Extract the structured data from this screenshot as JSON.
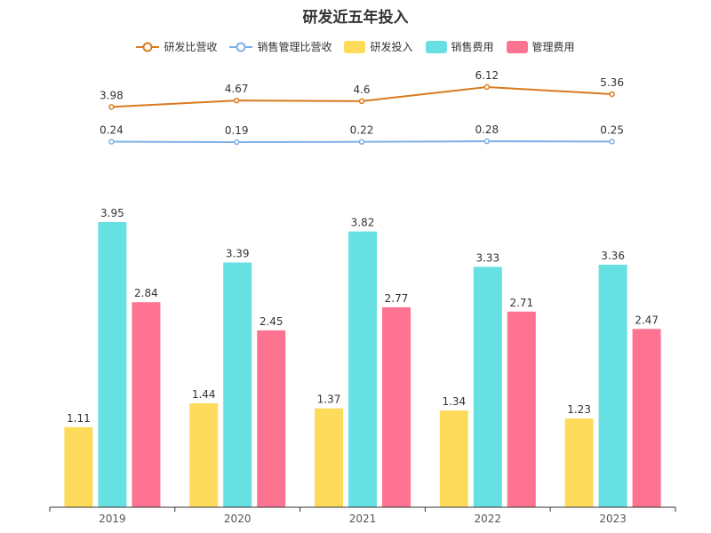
{
  "title": "研发近五年投入",
  "chart_data": {
    "type": "bar+line",
    "categories": [
      "2019",
      "2020",
      "2021",
      "2022",
      "2023"
    ],
    "bar_series": [
      {
        "name": "研发投入",
        "color": "#FFDB5C",
        "values": [
          1.11,
          1.44,
          1.37,
          1.34,
          1.23
        ]
      },
      {
        "name": "销售费用",
        "color": "#67E0E3",
        "values": [
          3.95,
          3.39,
          3.82,
          3.33,
          3.36
        ]
      },
      {
        "name": "管理费用",
        "color": "#FF7392",
        "values": [
          2.84,
          2.45,
          2.77,
          2.71,
          2.47
        ]
      }
    ],
    "line_series": [
      {
        "name": "研发比营收",
        "color": "#D97B1E",
        "values": [
          3.98,
          4.67,
          4.6,
          6.12,
          5.36
        ]
      },
      {
        "name": "销售管理比营收",
        "color": "#7BAFE8",
        "values": [
          0.24,
          0.19,
          0.22,
          0.28,
          0.25
        ]
      }
    ],
    "bar_ylim": [
      0,
      4
    ],
    "grid": false,
    "legend_position": "top-center"
  }
}
